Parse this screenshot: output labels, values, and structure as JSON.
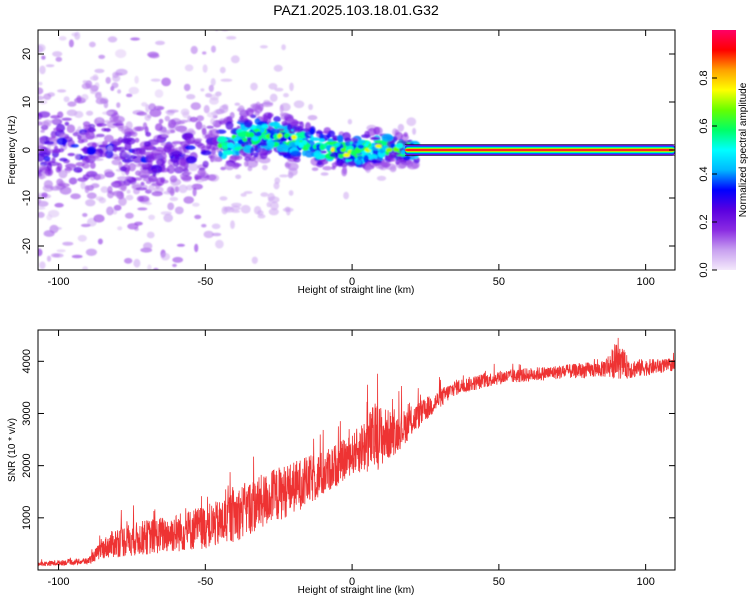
{
  "title": "PAZ1.2025.103.18.01.G32",
  "chart_data": [
    {
      "type": "heatmap",
      "title": "PAZ1.2025.103.18.01.G32",
      "xlabel": "Height of straight line (km)",
      "ylabel": "Frequency (Hz)",
      "xlim": [
        -107,
        110
      ],
      "ylim": [
        -25,
        25
      ],
      "x_ticks": [
        -100,
        -50,
        0,
        50,
        100
      ],
      "y_ticks": [
        -20,
        -10,
        0,
        10,
        20
      ],
      "colorbar": {
        "label": "Normalized spectral amplitude",
        "range": [
          0.0,
          1.0
        ],
        "ticks": [
          0.0,
          0.2,
          0.4,
          0.6,
          0.8
        ],
        "tick_labels": [
          "0.0",
          "0.2",
          "0.4",
          "0.6",
          "0.8"
        ],
        "colormap": [
          "#f4e9fb",
          "#c8a0f0",
          "#8a2be2",
          "#5a00e0",
          "#0000ff",
          "#00b8ff",
          "#00ffff",
          "#00ff66",
          "#66ff00",
          "#ffff00",
          "#ffa000",
          "#ff0000",
          "#ff0066"
        ]
      },
      "ridge": {
        "description_points": [
          {
            "x": -90,
            "f": 0.5
          },
          {
            "x": -70,
            "f": -1.5
          },
          {
            "x": -50,
            "f": -0.5
          },
          {
            "x": -40,
            "f": 2
          },
          {
            "x": -30,
            "f": 3.5
          },
          {
            "x": -20,
            "f": 2
          },
          {
            "x": -10,
            "f": 0.5
          },
          {
            "x": 0,
            "f": -0.5
          },
          {
            "x": 10,
            "f": 0.5
          },
          {
            "x": 20,
            "f": 0
          },
          {
            "x": 110,
            "f": 0
          }
        ],
        "steady_from_x": 20,
        "steady_amplitude": 0.95
      }
    },
    {
      "type": "line",
      "xlabel": "Height of straight line (km)",
      "ylabel": "SNR (10 * v/v)",
      "xlim": [
        -107,
        110
      ],
      "ylim": [
        0,
        4600
      ],
      "x_ticks": [
        -100,
        -50,
        0,
        50,
        100
      ],
      "y_ticks": [
        1000,
        2000,
        3000,
        4000
      ],
      "color": "#ee3333",
      "envelope": [
        {
          "x": -107,
          "mean": 100,
          "noise": 60
        },
        {
          "x": -90,
          "mean": 150,
          "noise": 80
        },
        {
          "x": -85,
          "mean": 350,
          "noise": 250
        },
        {
          "x": -80,
          "mean": 450,
          "noise": 400
        },
        {
          "x": -60,
          "mean": 600,
          "noise": 500
        },
        {
          "x": -45,
          "mean": 750,
          "noise": 600
        },
        {
          "x": -40,
          "mean": 900,
          "noise": 700
        },
        {
          "x": -25,
          "mean": 1300,
          "noise": 700
        },
        {
          "x": -10,
          "mean": 1700,
          "noise": 600
        },
        {
          "x": 0,
          "mean": 2100,
          "noise": 500
        },
        {
          "x": 8,
          "mean": 2350,
          "noise": 900
        },
        {
          "x": 15,
          "mean": 2500,
          "noise": 500
        },
        {
          "x": 25,
          "mean": 3000,
          "noise": 300
        },
        {
          "x": 35,
          "mean": 3450,
          "noise": 200
        },
        {
          "x": 50,
          "mean": 3650,
          "noise": 180
        },
        {
          "x": 70,
          "mean": 3750,
          "noise": 180
        },
        {
          "x": 85,
          "mean": 3800,
          "noise": 200
        },
        {
          "x": 90,
          "mean": 3900,
          "noise": 450
        },
        {
          "x": 95,
          "mean": 3800,
          "noise": 250
        },
        {
          "x": 110,
          "mean": 3900,
          "noise": 150
        }
      ]
    }
  ]
}
